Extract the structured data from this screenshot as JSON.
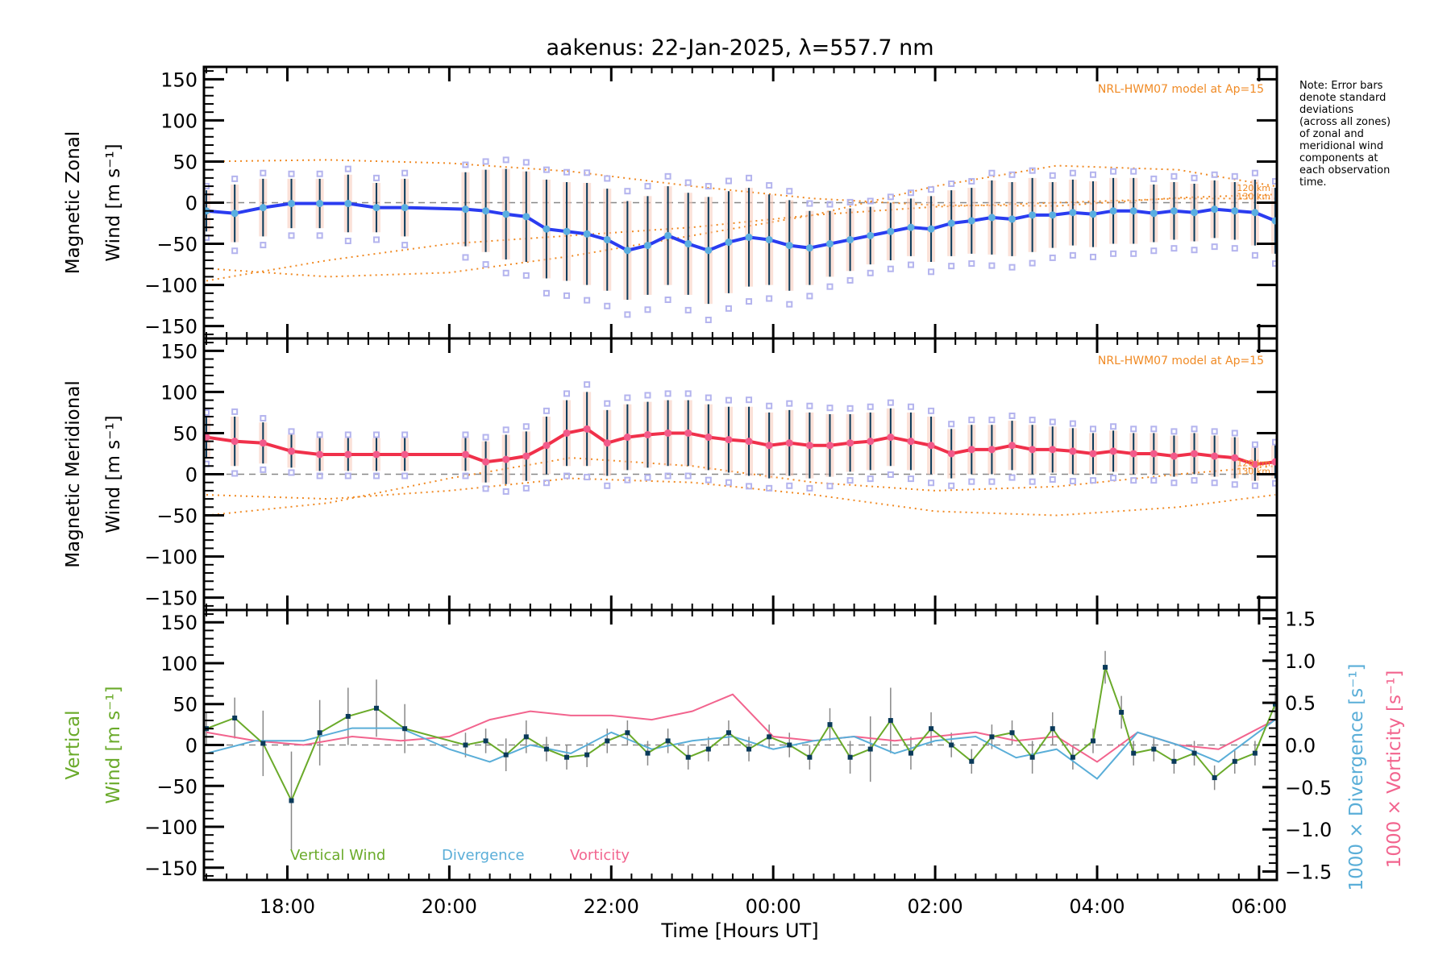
{
  "chart_data": {
    "type": "line",
    "title": "aakenus: 22-Jan-2025, λ=557.7 nm",
    "xlabel": "Time [Hours UT]",
    "xlim_hours": [
      16.97,
      30.22
    ],
    "x_ticks": [
      {
        "value": 18,
        "label": "18:00"
      },
      {
        "value": 20,
        "label": "20:00"
      },
      {
        "value": 22,
        "label": "22:00"
      },
      {
        "value": 24,
        "label": "00:00"
      },
      {
        "value": 26,
        "label": "02:00"
      },
      {
        "value": 28,
        "label": "04:00"
      },
      {
        "value": 30,
        "label": "06:00"
      }
    ],
    "note": [
      "Note: Error bars",
      "denote standard",
      "deviations",
      "(across all zones)",
      "of zonal and",
      "meridional wind",
      "components at",
      "each observation",
      "time."
    ],
    "colors": {
      "zonal": "#2a3cf0",
      "zonal_marker": "#5aaee0",
      "meridional": "#f0304a",
      "meridional_marker": "#f25a8a",
      "model": "#f08a24",
      "vertical": "#6aaa2a",
      "vertical_marker": "#0a3a5a",
      "divergence": "#5aaed8",
      "vorticity": "#f2648e",
      "zones": "#b4b4ee",
      "errorbar": "#0a3a5a",
      "zero_line": "#888888"
    },
    "panels": [
      {
        "id": "zonal",
        "ylabel_line1": "Magnetic Zonal",
        "ylabel_line2": "Wind [m s⁻¹]",
        "ylim": [
          -165,
          165
        ],
        "y_ticks": [
          150,
          100,
          50,
          0,
          -50,
          -100,
          -150
        ],
        "model_label": "NRL-HWM07 model at Ap=15",
        "model_km_labels": [
          "120 km",
          "130 km"
        ],
        "series": [
          {
            "name": "Zonal wind",
            "x": [
              17.0,
              17.35,
              17.7,
              18.05,
              18.4,
              18.75,
              19.1,
              19.45,
              20.2,
              20.45,
              20.7,
              20.95,
              21.2,
              21.45,
              21.7,
              21.95,
              22.2,
              22.45,
              22.7,
              22.95,
              23.2,
              23.45,
              23.7,
              23.95,
              24.2,
              24.45,
              24.7,
              24.95,
              25.2,
              25.45,
              25.7,
              25.95,
              26.2,
              26.45,
              26.7,
              26.95,
              27.2,
              27.45,
              27.7,
              27.95,
              28.2,
              28.45,
              28.7,
              28.95,
              29.2,
              29.45,
              29.7,
              29.95,
              30.2
            ],
            "y": [
              -10,
              -13,
              -6,
              -1,
              -1,
              -1,
              -6,
              -6,
              -8,
              -10,
              -14,
              -17,
              -32,
              -35,
              -38,
              -45,
              -58,
              -52,
              -40,
              -50,
              -58,
              -48,
              -42,
              -45,
              -52,
              -55,
              -50,
              -45,
              -40,
              -35,
              -30,
              -32,
              -25,
              -22,
              -18,
              -20,
              -15,
              -15,
              -12,
              -14,
              -10,
              -10,
              -13,
              -10,
              -12,
              -8,
              -10,
              -12,
              -22
            ],
            "err": [
              25,
              35,
              35,
              30,
              30,
              35,
              30,
              35,
              45,
              50,
              55,
              55,
              60,
              60,
              62,
              62,
              60,
              60,
              60,
              62,
              65,
              62,
              60,
              55,
              55,
              45,
              40,
              38,
              35,
              35,
              35,
              40,
              40,
              40,
              45,
              45,
              45,
              40,
              40,
              40,
              40,
              40,
              35,
              35,
              35,
              35,
              35,
              40,
              40
            ]
          },
          {
            "name": "HWM07 120 km",
            "x": [
              17.0,
              18.5,
              20.0,
              21.5,
              23.0,
              24.5,
              26.0,
              27.5,
              29.0,
              30.2
            ],
            "y": [
              50,
              52,
              48,
              38,
              20,
              5,
              -3,
              -4,
              6,
              10
            ]
          },
          {
            "name": "HWM07 130 km",
            "x": [
              17.0,
              18.5,
              20.0,
              21.5,
              23.0,
              24.5,
              26.0,
              27.5,
              29.0,
              30.2
            ],
            "y": [
              -80,
              -90,
              -85,
              -65,
              -40,
              -15,
              20,
              45,
              40,
              20
            ]
          },
          {
            "name": "HWM07 lower",
            "x": [
              17.0,
              18.5,
              20.0,
              21.5,
              23.0,
              24.5,
              26.0,
              27.5,
              29.0,
              30.2
            ],
            "y": [
              -95,
              -70,
              -50,
              -40,
              -30,
              -15,
              -5,
              0,
              5,
              5
            ]
          }
        ]
      },
      {
        "id": "meridional",
        "ylabel_line1": "Magnetic Meridional",
        "ylabel_line2": "Wind [m s⁻¹]",
        "ylim": [
          -165,
          165
        ],
        "y_ticks": [
          150,
          100,
          50,
          0,
          -50,
          -100,
          -150
        ],
        "model_label": "NRL-HWM07 model at Ap=15",
        "model_km_labels": [
          "120 km",
          "130 km"
        ],
        "series": [
          {
            "name": "Meridional wind",
            "x": [
              17.0,
              17.35,
              17.7,
              18.05,
              18.4,
              18.75,
              19.1,
              19.45,
              20.2,
              20.45,
              20.7,
              20.95,
              21.2,
              21.45,
              21.7,
              21.95,
              22.2,
              22.45,
              22.7,
              22.95,
              23.2,
              23.45,
              23.7,
              23.95,
              24.2,
              24.45,
              24.7,
              24.95,
              25.2,
              25.45,
              25.7,
              25.95,
              26.2,
              26.45,
              26.7,
              26.95,
              27.2,
              27.45,
              27.7,
              27.95,
              28.2,
              28.45,
              28.7,
              28.95,
              29.2,
              29.45,
              29.7,
              29.95,
              30.2
            ],
            "y": [
              45,
              40,
              38,
              28,
              24,
              24,
              24,
              24,
              24,
              15,
              18,
              22,
              35,
              50,
              55,
              38,
              45,
              48,
              50,
              50,
              45,
              42,
              40,
              35,
              38,
              35,
              35,
              38,
              40,
              45,
              40,
              35,
              25,
              30,
              30,
              35,
              30,
              30,
              28,
              25,
              28,
              25,
              25,
              22,
              25,
              22,
              20,
              12,
              15
            ],
            "err": [
              25,
              30,
              25,
              20,
              20,
              20,
              20,
              20,
              20,
              25,
              30,
              30,
              35,
              40,
              45,
              40,
              40,
              40,
              40,
              40,
              40,
              40,
              42,
              40,
              40,
              40,
              38,
              35,
              35,
              35,
              35,
              35,
              30,
              30,
              30,
              30,
              30,
              28,
              28,
              25,
              25,
              25,
              25,
              25,
              25,
              25,
              25,
              20,
              20
            ]
          },
          {
            "name": "HWM07 120 km",
            "x": [
              17.0,
              18.5,
              20.0,
              21.5,
              23.0,
              24.5,
              26.0,
              27.5,
              29.0,
              30.2
            ],
            "y": [
              -25,
              -30,
              -20,
              -5,
              -10,
              -25,
              -45,
              -50,
              -40,
              -25
            ]
          },
          {
            "name": "HWM07 130 km",
            "x": [
              17.0,
              18.5,
              20.0,
              21.5,
              23.0,
              24.5,
              26.0,
              27.5,
              29.0,
              30.2
            ],
            "y": [
              -50,
              -35,
              -5,
              20,
              10,
              -10,
              -20,
              -15,
              0,
              10
            ]
          }
        ]
      },
      {
        "id": "vertical",
        "ylabel_line1": "Vertical",
        "ylabel_line2": "Wind [m s⁻¹]",
        "ylim": [
          -165,
          165
        ],
        "y_ticks": [
          150,
          100,
          50,
          0,
          -50,
          -100,
          -150
        ],
        "right_ylim": [
          -1.6,
          1.6
        ],
        "right_y_ticks": [
          "1.5",
          "1.0",
          "0.5",
          "0.0",
          "−0.5",
          "−1.0",
          "−1.5"
        ],
        "right_ylabel_divergence": "1000 × Divergence [s⁻¹]",
        "right_ylabel_vorticity": "1000 × Vorticity [s⁻¹]",
        "legend": [
          "Vertical Wind",
          "Divergence",
          "Vorticity"
        ],
        "series": [
          {
            "name": "Vertical Wind",
            "x": [
              17.0,
              17.35,
              17.7,
              18.05,
              18.4,
              18.75,
              19.1,
              19.45,
              20.2,
              20.45,
              20.7,
              20.95,
              21.2,
              21.45,
              21.7,
              21.95,
              22.2,
              22.45,
              22.7,
              22.95,
              23.2,
              23.45,
              23.7,
              23.95,
              24.2,
              24.45,
              24.7,
              24.95,
              25.2,
              25.45,
              25.7,
              25.95,
              26.2,
              26.45,
              26.7,
              26.95,
              27.2,
              27.45,
              27.7,
              27.95,
              28.1,
              28.3,
              28.45,
              28.7,
              28.95,
              29.2,
              29.45,
              29.7,
              29.95,
              30.2
            ],
            "y": [
              20,
              33,
              2,
              -68,
              15,
              35,
              45,
              20,
              0,
              5,
              -12,
              10,
              -5,
              -15,
              -12,
              5,
              15,
              -10,
              5,
              -15,
              -5,
              15,
              -5,
              10,
              0,
              -15,
              25,
              -15,
              -5,
              30,
              -10,
              20,
              0,
              -20,
              10,
              15,
              -15,
              20,
              -15,
              5,
              95,
              40,
              -10,
              -5,
              -20,
              -10,
              -40,
              -20,
              -10,
              50
            ],
            "err": [
              20,
              25,
              40,
              60,
              40,
              35,
              35,
              30,
              15,
              15,
              20,
              20,
              15,
              15,
              15,
              15,
              15,
              15,
              15,
              15,
              15,
              15,
              15,
              15,
              15,
              15,
              20,
              20,
              40,
              40,
              20,
              20,
              15,
              15,
              15,
              15,
              20,
              20,
              15,
              15,
              20,
              20,
              15,
              15,
              15,
              15,
              15,
              15,
              15,
              20
            ]
          },
          {
            "name": "Divergence",
            "x": [
              17.0,
              17.6,
              18.2,
              18.8,
              19.4,
              20.0,
              20.5,
              21.0,
              21.5,
              22.0,
              22.5,
              23.0,
              23.5,
              24.0,
              24.5,
              25.0,
              25.5,
              26.0,
              26.5,
              27.0,
              27.5,
              28.0,
              28.5,
              29.0,
              29.5,
              30.2
            ],
            "y": [
              -0.1,
              0.05,
              0.05,
              0.2,
              0.2,
              -0.05,
              -0.2,
              0.0,
              -0.1,
              0.15,
              -0.05,
              0.05,
              0.1,
              -0.05,
              0.05,
              0.1,
              -0.1,
              0.05,
              0.1,
              -0.15,
              -0.05,
              -0.4,
              0.15,
              0.0,
              -0.2,
              0.3
            ]
          },
          {
            "name": "Vorticity",
            "x": [
              17.0,
              17.6,
              18.2,
              18.8,
              19.4,
              20.0,
              20.5,
              21.0,
              21.5,
              22.0,
              22.5,
              23.0,
              23.5,
              24.0,
              24.5,
              25.0,
              25.5,
              26.0,
              26.5,
              27.0,
              27.5,
              28.0,
              28.5,
              29.0,
              29.5,
              30.2
            ],
            "y": [
              0.15,
              0.05,
              0.0,
              0.1,
              0.05,
              0.1,
              0.3,
              0.4,
              0.35,
              0.35,
              0.3,
              0.4,
              0.6,
              0.1,
              0.05,
              0.1,
              0.05,
              0.1,
              0.15,
              0.05,
              0.1,
              -0.2,
              0.15,
              0.0,
              -0.05,
              0.3
            ]
          }
        ]
      }
    ]
  }
}
